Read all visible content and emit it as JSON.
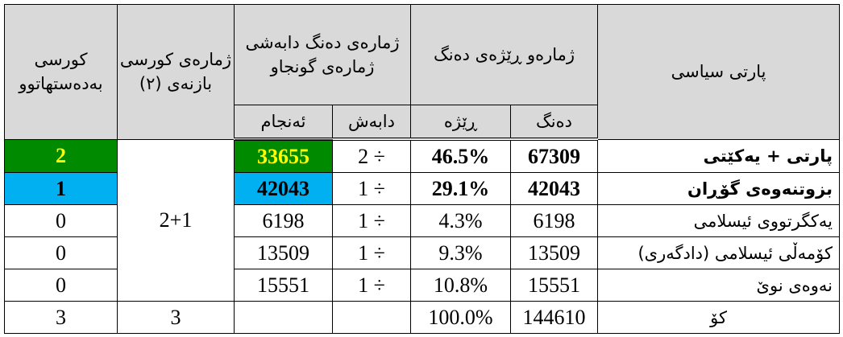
{
  "colors": {
    "header_bg": "#d9d9d9",
    "green": "#008a00",
    "yellow_text": "#ffff00",
    "blue": "#00b0f0"
  },
  "headers": {
    "seats_won": "کورسی بەدەستهاتوو",
    "seats_circle": "ژمارەی کورسی بازنەی (٢)",
    "votes_divided": "ژمارەی دەنگ دابەشی ژمارەی گونجاو",
    "result": "ئەنجام",
    "divisor": "دابەش",
    "votes_and_ratio": "ژمارەو ڕێژەی دەنگ",
    "ratio": "ڕێژە",
    "votes": "دەنگ",
    "party": "پارتی سیاسی"
  },
  "seats_circle_value": "2+1",
  "rows": [
    {
      "party": "پارتی + یەکێتی",
      "votes": "67309",
      "ratio": "46.5%",
      "divisor": "2 ÷",
      "result": "33655",
      "seats": "2",
      "highlight": "green"
    },
    {
      "party": "بزوتنەوەی گۆڕان",
      "votes": "42043",
      "ratio": "29.1%",
      "divisor": "1 ÷",
      "result": "42043",
      "seats": "1",
      "highlight": "blue"
    },
    {
      "party": "یەکگرتووی ئیسلامی",
      "votes": "6198",
      "ratio": "4.3%",
      "divisor": "1 ÷",
      "result": "6198",
      "seats": "0"
    },
    {
      "party": "کۆمەڵی ئیسلامی (دادگەری)",
      "votes": "13509",
      "ratio": "9.3%",
      "divisor": "1 ÷",
      "result": "13509",
      "seats": "0"
    },
    {
      "party": "نەوەی نوێ",
      "votes": "15551",
      "ratio": "10.8%",
      "divisor": "1 ÷",
      "result": "15551",
      "seats": "0"
    }
  ],
  "total": {
    "label": "کۆ",
    "votes": "144610",
    "ratio": "100.0%",
    "seats_circle": "3",
    "seats": "3"
  }
}
